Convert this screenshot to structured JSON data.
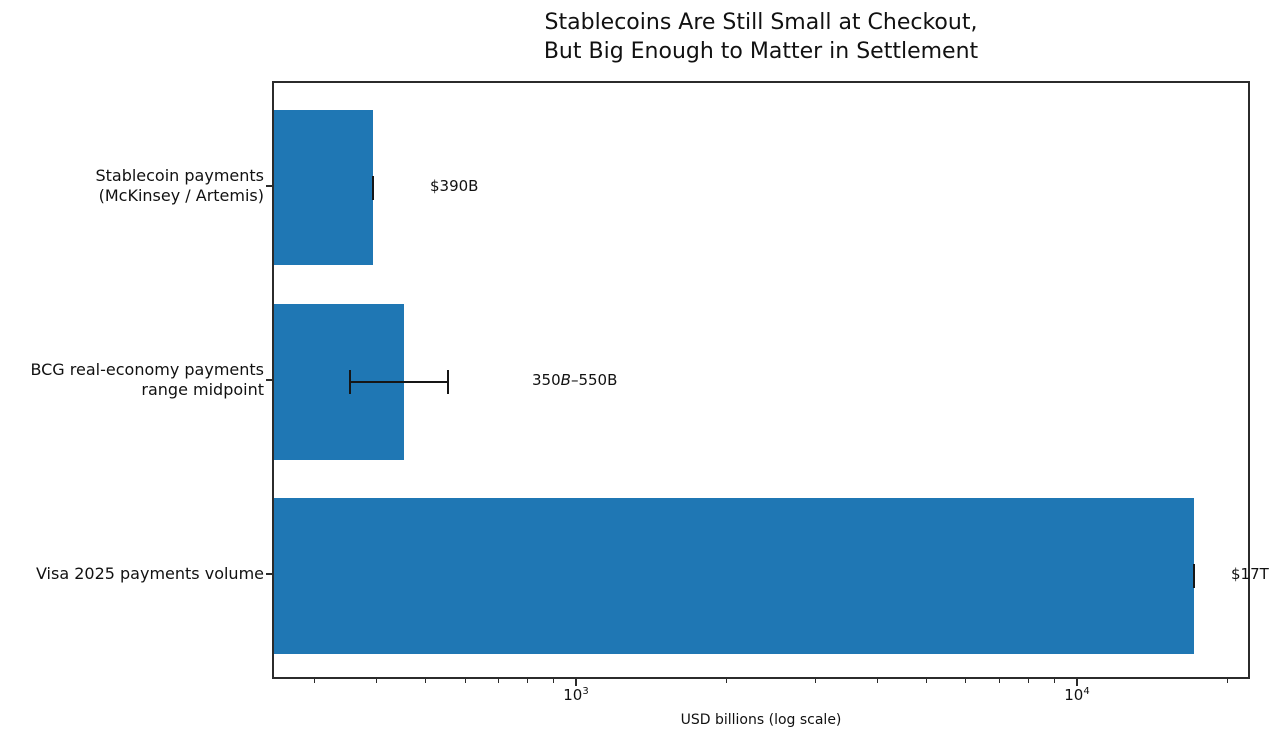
{
  "figure": {
    "title_line1": "Stablecoins Are Still Small at Checkout,",
    "title_line2": "But Big Enough to Matter in Settlement"
  },
  "axes": {
    "xlabel": "USD billions (log scale)",
    "x_major_tick_labels": [
      {
        "base": "10",
        "exp": "3"
      },
      {
        "base": "10",
        "exp": "4"
      }
    ],
    "y_tick_labels": [
      {
        "line1": "Stablecoin payments",
        "line2": "(McKinsey / Artemis)"
      },
      {
        "line1": "BCG real-economy payments",
        "line2": "range midpoint"
      },
      {
        "line1": "Visa 2025 payments volume",
        "line2": ""
      }
    ]
  },
  "annotations": {
    "bar1": {
      "text": "$390B"
    },
    "bar2": {
      "pre": "350",
      "italic_b": "B",
      "post": "–550B",
      "full": "350B–550B"
    },
    "bar3": {
      "text": "$17T"
    }
  },
  "chart_data": {
    "type": "bar",
    "orientation": "horizontal",
    "x_scale": "log",
    "grid": false,
    "legend": "none",
    "title": "Stablecoins Are Still Small at Checkout, But Big Enough to Matter in Settlement",
    "xlabel": "USD billions (log scale)",
    "categories": [
      "Stablecoin payments (McKinsey / Artemis)",
      "BCG real-economy payments range midpoint",
      "Visa 2025 payments volume"
    ],
    "values_usd_billions": [
      390,
      450,
      17000
    ],
    "error_ranges_usd_billions": [
      [
        390,
        390
      ],
      [
        350,
        550
      ],
      [
        17000,
        17000
      ]
    ],
    "data_labels": [
      "$390B",
      "350B–550B",
      "$17T"
    ],
    "xlim": [
      247,
      22150
    ],
    "x_major_ticks": [
      1000,
      10000
    ],
    "x_minor_ticks": [
      300,
      400,
      500,
      600,
      700,
      800,
      900,
      2000,
      3000,
      4000,
      5000,
      6000,
      7000,
      8000,
      9000,
      20000
    ],
    "bar_color": "#1f77b4",
    "error_color": "#161616",
    "bar_height_fraction": 0.8,
    "ylim_units": [
      -0.54,
      2.54
    ]
  }
}
